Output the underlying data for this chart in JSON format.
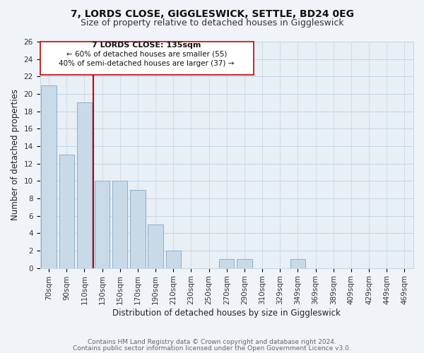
{
  "title": "7, LORDS CLOSE, GIGGLESWICK, SETTLE, BD24 0EG",
  "subtitle": "Size of property relative to detached houses in Giggleswick",
  "xlabel": "Distribution of detached houses by size in Giggleswick",
  "ylabel": "Number of detached properties",
  "bar_labels": [
    "70sqm",
    "90sqm",
    "110sqm",
    "130sqm",
    "150sqm",
    "170sqm",
    "190sqm",
    "210sqm",
    "230sqm",
    "250sqm",
    "270sqm",
    "290sqm",
    "310sqm",
    "329sqm",
    "349sqm",
    "369sqm",
    "389sqm",
    "409sqm",
    "429sqm",
    "449sqm",
    "469sqm"
  ],
  "bar_values": [
    21,
    13,
    19,
    10,
    10,
    9,
    5,
    2,
    0,
    0,
    1,
    1,
    0,
    0,
    1,
    0,
    0,
    0,
    0,
    0,
    0
  ],
  "bar_color": "#c8d9e8",
  "bar_edgecolor": "#8ab0cc",
  "reference_line_color": "#cc0000",
  "ylim": [
    0,
    26
  ],
  "yticks": [
    0,
    2,
    4,
    6,
    8,
    10,
    12,
    14,
    16,
    18,
    20,
    22,
    24,
    26
  ],
  "annotation_title": "7 LORDS CLOSE: 135sqm",
  "annotation_line1": "← 60% of detached houses are smaller (55)",
  "annotation_line2": "40% of semi-detached houses are larger (37) →",
  "footer1": "Contains HM Land Registry data © Crown copyright and database right 2024.",
  "footer2": "Contains public sector information licensed under the Open Government Licence v3.0.",
  "background_color": "#f0f4f8",
  "plot_bg_color": "#e8eff5",
  "grid_color": "#c5d5e5",
  "title_fontsize": 10,
  "subtitle_fontsize": 9,
  "axis_label_fontsize": 8.5,
  "tick_fontsize": 7.5,
  "footer_fontsize": 6.5,
  "annot_fontsize": 8
}
